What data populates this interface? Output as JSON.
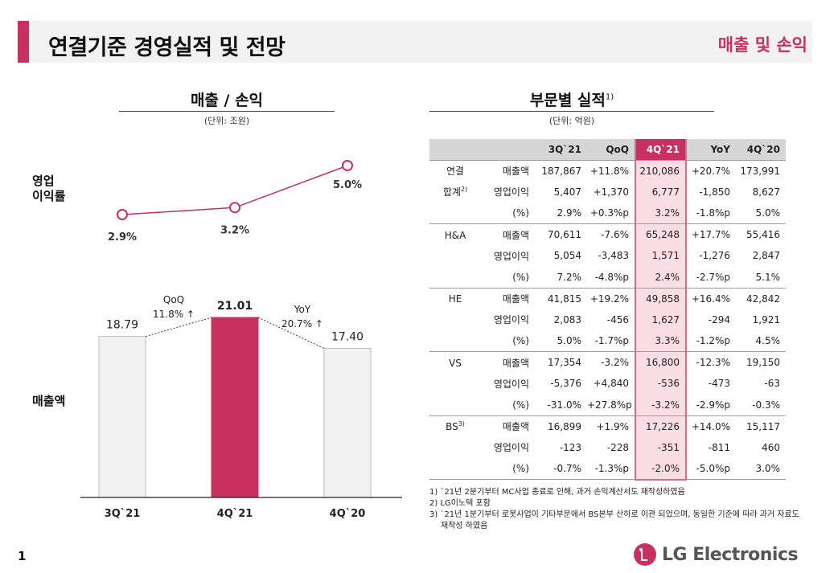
{
  "header": {
    "title": "연결기준 경영실적 및 전망",
    "subtitle": "매출 및 손익"
  },
  "left": {
    "title": "매출 / 손익",
    "unit": "(단위: 조원)",
    "row_label_margin": "영업\n이익률",
    "row_label_sales": "매출액",
    "qoq_label": "QoQ",
    "qoq_value": "11.8% ↑",
    "yoy_label": "YoY",
    "yoy_value": "20.7% ↑"
  },
  "chart_data": {
    "type": "bar",
    "categories": [
      "3Q`21",
      "4Q`21",
      "4Q`20"
    ],
    "values": [
      18.79,
      21.01,
      17.4
    ],
    "value_labels": [
      "18.79",
      "21.01",
      "17.40"
    ],
    "highlight_index": 1,
    "ylim": [
      0,
      22
    ],
    "colors": {
      "normal": "#f2f2f2",
      "highlight": "#c7305f"
    },
    "margin_series": {
      "type": "line",
      "values": [
        2.9,
        3.2,
        5.0
      ],
      "value_labels": [
        "2.9%",
        "3.2%",
        "5.0%"
      ],
      "color": "#c7305f"
    }
  },
  "right": {
    "title": "부문별 실적",
    "title_sup": "1)",
    "unit": "(단위: 억원)"
  },
  "table": {
    "headers": [
      "",
      "",
      "3Q`21",
      "QoQ",
      "4Q`21",
      "YoY",
      "4Q`20"
    ],
    "highlight_col": 4,
    "rows": [
      {
        "seg": "연결",
        "seg_sup": "",
        "metric": "매출액",
        "values": [
          "187,867",
          "+11.8%",
          "210,086",
          "+20.7%",
          "173,991"
        ]
      },
      {
        "seg": "합계",
        "seg_sup": "2)",
        "metric": "영업이익",
        "values": [
          "5,407",
          "+1,370",
          "6,777",
          "-1,850",
          "8,627"
        ]
      },
      {
        "seg": "",
        "seg_sup": "",
        "metric": "(%)",
        "values": [
          "2.9%",
          "+0.3%p",
          "3.2%",
          "-1.8%p",
          "5.0%"
        ]
      },
      {
        "seg": "H&A",
        "seg_sup": "",
        "metric": "매출액",
        "values": [
          "70,611",
          "-7.6%",
          "65,248",
          "+17.7%",
          "55,416"
        ]
      },
      {
        "seg": "",
        "seg_sup": "",
        "metric": "영업이익",
        "values": [
          "5,054",
          "-3,483",
          "1,571",
          "-1,276",
          "2,847"
        ]
      },
      {
        "seg": "",
        "seg_sup": "",
        "metric": "(%)",
        "values": [
          "7.2%",
          "-4.8%p",
          "2.4%",
          "-2.7%p",
          "5.1%"
        ]
      },
      {
        "seg": "HE",
        "seg_sup": "",
        "metric": "매출액",
        "values": [
          "41,815",
          "+19.2%",
          "49,858",
          "+16.4%",
          "42,842"
        ]
      },
      {
        "seg": "",
        "seg_sup": "",
        "metric": "영업이익",
        "values": [
          "2,083",
          "-456",
          "1,627",
          "-294",
          "1,921"
        ]
      },
      {
        "seg": "",
        "seg_sup": "",
        "metric": "(%)",
        "values": [
          "5.0%",
          "-1.7%p",
          "3.3%",
          "-1.2%p",
          "4.5%"
        ]
      },
      {
        "seg": "VS",
        "seg_sup": "",
        "metric": "매출액",
        "values": [
          "17,354",
          "-3.2%",
          "16,800",
          "-12.3%",
          "19,150"
        ]
      },
      {
        "seg": "",
        "seg_sup": "",
        "metric": "영업이익",
        "values": [
          "-5,376",
          "+4,840",
          "-536",
          "-473",
          "-63"
        ]
      },
      {
        "seg": "",
        "seg_sup": "",
        "metric": "(%)",
        "values": [
          "-31.0%",
          "+27.8%p",
          "-3.2%",
          "-2.9%p",
          "-0.3%"
        ]
      },
      {
        "seg": "BS",
        "seg_sup": "3)",
        "metric": "매출액",
        "values": [
          "16,899",
          "+1.9%",
          "17,226",
          "+14.0%",
          "15,117"
        ]
      },
      {
        "seg": "",
        "seg_sup": "",
        "metric": "영업이익",
        "values": [
          "-123",
          "-228",
          "-351",
          "-811",
          "460"
        ]
      },
      {
        "seg": "",
        "seg_sup": "",
        "metric": "(%)",
        "values": [
          "-0.7%",
          "-1.3%p",
          "-2.0%",
          "-5.0%p",
          "3.0%"
        ]
      }
    ]
  },
  "footnotes": [
    "1) `21년 2분기부터 MC사업 종료로 인해, 과거 손익계산서도 재작성하였음",
    "2) LG이노텍 포함",
    "3) `21년 1분기부터 로봇사업이 기타부문에서 BS본부 산하로 이관 되었으며, 동일한 기준에 따라 과거 자료도 재작성 하였음"
  ],
  "page_number": "1",
  "logo_text": "LG Electronics"
}
